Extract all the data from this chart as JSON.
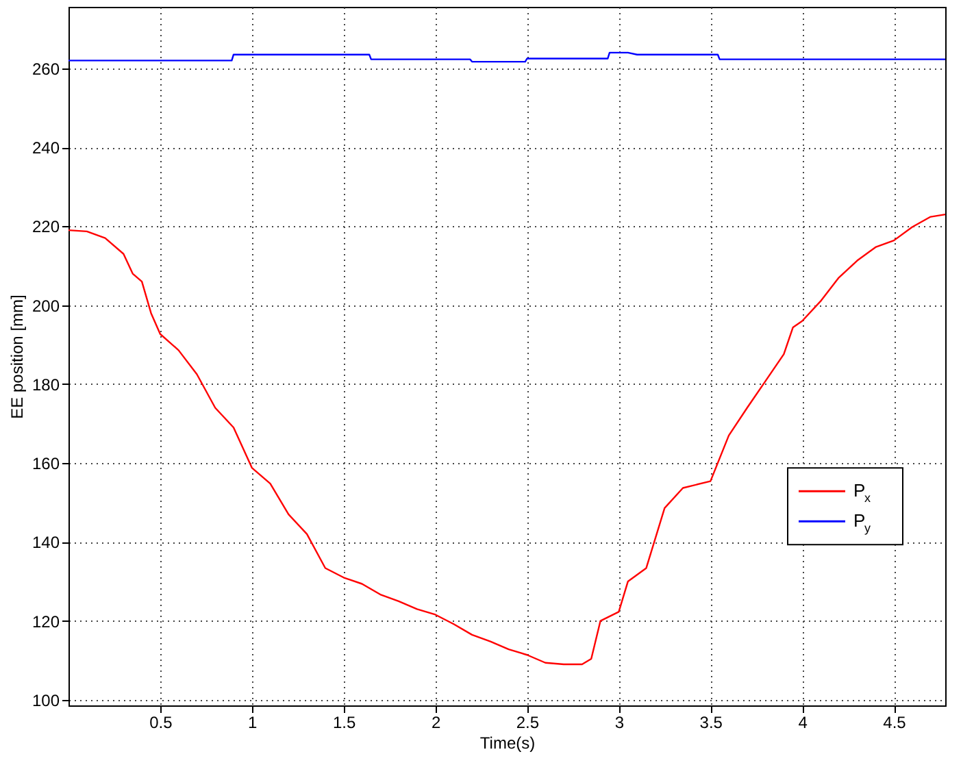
{
  "chart_data": {
    "type": "line",
    "xlabel": "Time(s)",
    "ylabel": "EE position [mm]",
    "xlim": [
      0,
      4.78
    ],
    "ylim": [
      98.6,
      275.6
    ],
    "xticks": [
      0.5,
      1,
      1.5,
      2,
      2.5,
      3,
      3.5,
      4,
      4.5
    ],
    "yticks": [
      100,
      120,
      140,
      160,
      180,
      200,
      220,
      240,
      260
    ],
    "grid": true,
    "legend": "right",
    "line_style": "solid",
    "marker": "none",
    "series": [
      {
        "name": "P$_{x}$",
        "color": "#ff0000",
        "x": [
          0,
          0.1,
          0.2,
          0.3,
          0.35,
          0.4,
          0.45,
          0.5,
          0.6,
          0.7,
          0.8,
          0.9,
          1.0,
          1.1,
          1.2,
          1.3,
          1.4,
          1.5,
          1.6,
          1.7,
          1.8,
          1.9,
          2.0,
          2.1,
          2.2,
          2.3,
          2.4,
          2.5,
          2.6,
          2.7,
          2.8,
          2.85,
          2.9,
          3.0,
          3.05,
          3.15,
          3.25,
          3.35,
          3.5,
          3.6,
          3.7,
          3.8,
          3.9,
          3.95,
          4.0,
          4.1,
          4.2,
          4.3,
          4.4,
          4.5,
          4.6,
          4.7,
          4.78
        ],
        "values": [
          219,
          218.7,
          217,
          213,
          208,
          206,
          198,
          192.7,
          188.6,
          182.5,
          174,
          169,
          158.8,
          154.8,
          147,
          142,
          133.4,
          131,
          129.4,
          126.7,
          125,
          123,
          121.6,
          119.2,
          116.5,
          114.8,
          112.8,
          111.4,
          109.4,
          109,
          109,
          110.4,
          120,
          122.3,
          130,
          133.4,
          148.6,
          153.7,
          155.4,
          167,
          174,
          180.8,
          187.6,
          194.4,
          196,
          201,
          207,
          211.3,
          214.7,
          216.4,
          219.8,
          222.4,
          223
        ]
      },
      {
        "name": "P$_{y}$",
        "color": "#0000ff",
        "x": [
          0,
          0.89,
          0.9,
          1.64,
          1.65,
          2.19,
          2.2,
          2.49,
          2.5,
          2.94,
          2.95,
          3.05,
          3.1,
          3.54,
          3.55,
          4.78
        ],
        "values": [
          262,
          262,
          263.5,
          263.5,
          262.3,
          262.3,
          261.7,
          261.7,
          262.5,
          262.5,
          264,
          264,
          263.5,
          263.5,
          262.3,
          262.3
        ]
      }
    ]
  }
}
